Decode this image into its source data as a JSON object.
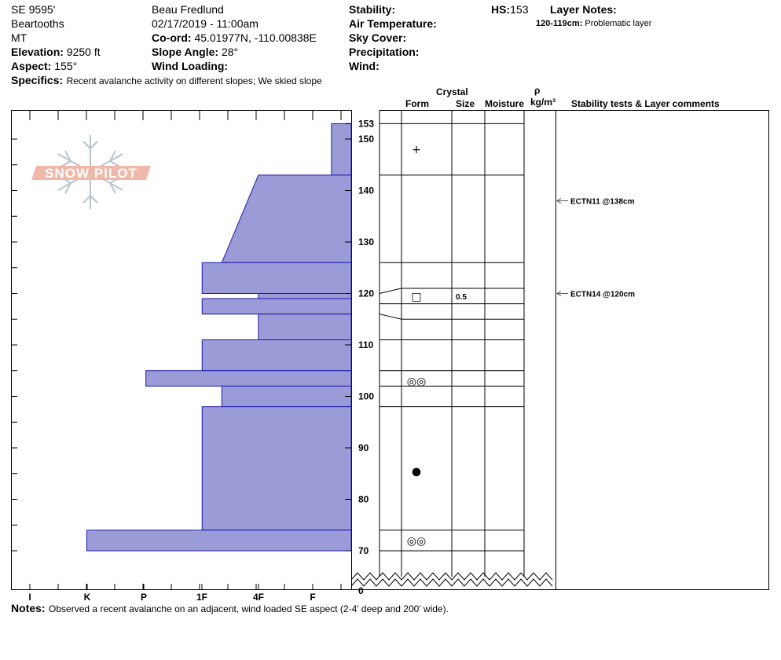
{
  "header": {
    "site": "SE 9595'",
    "range": "Beartooths",
    "state": "MT",
    "elevation_label": "Elevation:",
    "elevation_value": "9250 ft",
    "aspect_label": "Aspect:",
    "aspect_value": "155°",
    "specifics_label": "Specifics:",
    "specifics_value": "Recent avalanche activity on different slopes;  We skied slope",
    "observer": "Beau  Fredlund",
    "datetime": "02/17/2019 - 11:00am",
    "coord_label": "Co-ord:",
    "coord_value": "45.01977N, -110.00838E",
    "slope_label": "Slope Angle:",
    "slope_value": "28°",
    "wind_loading_label": "Wind Loading:",
    "stability_label": "Stability:",
    "air_temp_label": "Air Temperature:",
    "sky_cover_label": "Sky Cover:",
    "precip_label": "Precipitation:",
    "wind_label": "Wind:",
    "hs_label": "HS:",
    "hs_value": "153",
    "layer_notes_label": "Layer Notes:",
    "layer_note_range": "120-119cm:",
    "layer_note_text": "Problematic layer"
  },
  "logo_text": "SNOW PILOT",
  "columns": {
    "crystal": "Crystal",
    "form": "Form",
    "size": "Size",
    "moisture": "Moisture",
    "rho": "ρ",
    "density_unit": "kg/m³",
    "comments": "Stability tests & Layer comments"
  },
  "notes_label": "Notes:",
  "notes_value": "Observed a recent avalanche on an adjacent, wind loaded SE aspect (2-4' deep and 200' wide).",
  "chart_data": {
    "type": "bar",
    "description_hardness": "Hand hardness profile by depth",
    "hardness_scale": [
      "I",
      "K",
      "P",
      "1F",
      "4F",
      "F"
    ],
    "y_ticks": [
      153,
      150,
      140,
      130,
      120,
      110,
      100,
      90,
      80,
      70
    ],
    "y_axis_bottom_label": "0",
    "ylim": [
      68.5,
      154
    ],
    "layers": [
      {
        "top": 153,
        "bottom": 143,
        "hardness_top": 0.35,
        "hardness_bottom": 0.35
      },
      {
        "top": 143,
        "bottom": 126,
        "hardness_top": 1.65,
        "hardness_bottom": 2.3
      },
      {
        "top": 126,
        "bottom": 120,
        "hardness_top": 2.65,
        "hardness_bottom": 2.65
      },
      {
        "top": 120,
        "bottom": 119,
        "hardness_top": 1.65,
        "hardness_bottom": 1.65
      },
      {
        "top": 119,
        "bottom": 116,
        "hardness_top": 2.65,
        "hardness_bottom": 2.65
      },
      {
        "top": 116,
        "bottom": 111,
        "hardness_top": 1.65,
        "hardness_bottom": 1.65
      },
      {
        "top": 111,
        "bottom": 105,
        "hardness_top": 2.65,
        "hardness_bottom": 2.65
      },
      {
        "top": 105,
        "bottom": 102,
        "hardness_top": 3.65,
        "hardness_bottom": 3.65
      },
      {
        "top": 102,
        "bottom": 98,
        "hardness_top": 2.3,
        "hardness_bottom": 2.3
      },
      {
        "top": 98,
        "bottom": 74,
        "hardness_top": 2.65,
        "hardness_bottom": 2.65
      },
      {
        "top": 74,
        "bottom": 70,
        "hardness_top": 4.7,
        "hardness_bottom": 4.7
      }
    ],
    "layer_boundaries": [
      153,
      143,
      126,
      121,
      118,
      115,
      111,
      105,
      102,
      98,
      74,
      70
    ],
    "crystal_forms": [
      {
        "depth": 148,
        "form": "+"
      },
      {
        "depth": 119.5,
        "form": "□",
        "size": "0.5"
      },
      {
        "depth": 103,
        "form": "◎◎"
      },
      {
        "depth": 85.5,
        "form": "●"
      },
      {
        "depth": 72,
        "form": "◎◎"
      }
    ],
    "stability_tests": [
      {
        "depth": 138,
        "label": "ECTN11 @138cm"
      },
      {
        "depth": 120,
        "label": "ECTN14 @120cm"
      }
    ],
    "colors": {
      "fill": "#9b9bd7",
      "stroke": "#1a1aa8"
    }
  }
}
